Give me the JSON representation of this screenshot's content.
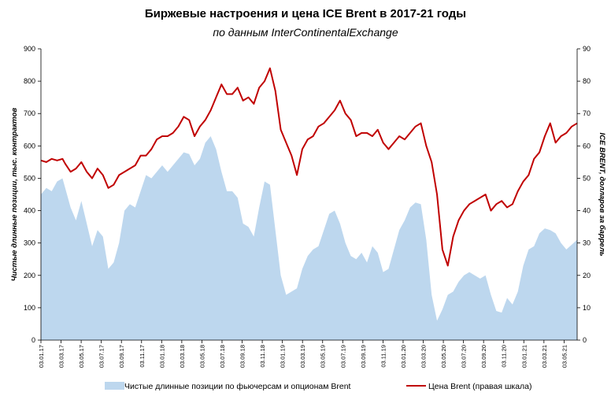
{
  "chart_data": {
    "type": "area+line",
    "title": "Биржевые настроения  и цена ICE Brent в 2017-21 годы",
    "subtitle": "по данным InterContinentalExchange",
    "ylabel_left": "Чистые длинные позиции, тыс. контрактов",
    "ylabel_right": "ICE BRENT, долларов за баррель",
    "ylim_left": [
      0,
      900
    ],
    "ylim_right": [
      0,
      90
    ],
    "yticks_left": [
      "0",
      "100",
      "200",
      "300",
      "400",
      "500",
      "600",
      "700",
      "800",
      "900"
    ],
    "yticks_right": [
      "0",
      "10",
      "20",
      "30",
      "40",
      "50",
      "60",
      "70",
      "80",
      "90"
    ],
    "x_range": [
      "03.01.17",
      "04.05.21"
    ],
    "xtick_labels": [
      "03.01.17",
      "03.03.17",
      "03.05.17",
      "03.07.17",
      "03.09.17",
      "03.11.17",
      "03.01.18",
      "03.03.18",
      "03.05.18",
      "03.07.18",
      "03.09.18",
      "03.11.18",
      "03.01.19",
      "03.03.19",
      "03.05.19",
      "03.07.19",
      "03.09.19",
      "03.11.19",
      "03.01.20",
      "03.03.20",
      "03.05.20",
      "03.07.20",
      "03.09.20",
      "03.11.20",
      "03.01.21",
      "03.03.21",
      "03.05.21"
    ],
    "series": [
      {
        "name": "Чистые длинные позиции по фьючерсам и опционам Brent",
        "type": "area",
        "axis": "left",
        "color": "#bdd7ee",
        "points": [
          [
            0,
            450
          ],
          [
            2,
            470
          ],
          [
            4,
            460
          ],
          [
            6,
            490
          ],
          [
            8,
            500
          ],
          [
            9,
            470
          ],
          [
            11,
            410
          ],
          [
            13,
            370
          ],
          [
            15,
            430
          ],
          [
            17,
            360
          ],
          [
            19,
            290
          ],
          [
            21,
            340
          ],
          [
            23,
            320
          ],
          [
            25,
            220
          ],
          [
            27,
            240
          ],
          [
            29,
            300
          ],
          [
            31,
            400
          ],
          [
            33,
            420
          ],
          [
            35,
            410
          ],
          [
            37,
            460
          ],
          [
            39,
            510
          ],
          [
            41,
            500
          ],
          [
            43,
            520
          ],
          [
            45,
            540
          ],
          [
            47,
            520
          ],
          [
            49,
            540
          ],
          [
            51,
            560
          ],
          [
            53,
            580
          ],
          [
            55,
            575
          ],
          [
            57,
            540
          ],
          [
            59,
            560
          ],
          [
            61,
            610
          ],
          [
            63,
            630
          ],
          [
            65,
            590
          ],
          [
            67,
            520
          ],
          [
            69,
            460
          ],
          [
            71,
            460
          ],
          [
            73,
            440
          ],
          [
            75,
            360
          ],
          [
            77,
            350
          ],
          [
            79,
            320
          ],
          [
            81,
            410
          ],
          [
            83,
            490
          ],
          [
            85,
            480
          ],
          [
            87,
            340
          ],
          [
            89,
            200
          ],
          [
            91,
            140
          ],
          [
            93,
            150
          ],
          [
            95,
            160
          ],
          [
            97,
            220
          ],
          [
            99,
            260
          ],
          [
            101,
            280
          ],
          [
            103,
            290
          ],
          [
            105,
            340
          ],
          [
            107,
            390
          ],
          [
            109,
            400
          ],
          [
            111,
            360
          ],
          [
            113,
            300
          ],
          [
            115,
            260
          ],
          [
            117,
            250
          ],
          [
            119,
            270
          ],
          [
            121,
            240
          ],
          [
            123,
            290
          ],
          [
            125,
            270
          ],
          [
            127,
            210
          ],
          [
            129,
            220
          ],
          [
            131,
            280
          ],
          [
            133,
            340
          ],
          [
            135,
            370
          ],
          [
            137,
            410
          ],
          [
            139,
            425
          ],
          [
            141,
            420
          ],
          [
            143,
            310
          ],
          [
            145,
            140
          ],
          [
            147,
            60
          ],
          [
            149,
            95
          ],
          [
            151,
            140
          ],
          [
            153,
            150
          ],
          [
            155,
            180
          ],
          [
            157,
            200
          ],
          [
            159,
            210
          ],
          [
            161,
            200
          ],
          [
            163,
            190
          ],
          [
            165,
            200
          ],
          [
            167,
            140
          ],
          [
            169,
            90
          ],
          [
            171,
            85
          ],
          [
            173,
            130
          ],
          [
            175,
            110
          ],
          [
            177,
            150
          ],
          [
            179,
            230
          ],
          [
            181,
            280
          ],
          [
            183,
            290
          ],
          [
            185,
            330
          ],
          [
            187,
            345
          ],
          [
            189,
            340
          ],
          [
            191,
            330
          ],
          [
            193,
            300
          ],
          [
            195,
            280
          ],
          [
            197,
            295
          ],
          [
            199,
            310
          ]
        ]
      },
      {
        "name": "Цена Brent (правая шкала)",
        "type": "line",
        "axis": "right",
        "color": "#c00000",
        "points": [
          [
            0,
            55.5
          ],
          [
            2,
            55
          ],
          [
            4,
            56
          ],
          [
            6,
            55.5
          ],
          [
            8,
            56
          ],
          [
            9,
            54.5
          ],
          [
            11,
            52
          ],
          [
            13,
            53
          ],
          [
            15,
            55
          ],
          [
            17,
            52
          ],
          [
            19,
            50
          ],
          [
            21,
            53
          ],
          [
            23,
            51
          ],
          [
            25,
            47
          ],
          [
            27,
            48
          ],
          [
            29,
            51
          ],
          [
            31,
            52
          ],
          [
            33,
            53
          ],
          [
            35,
            54
          ],
          [
            37,
            57
          ],
          [
            39,
            57
          ],
          [
            41,
            59
          ],
          [
            43,
            62
          ],
          [
            45,
            63
          ],
          [
            47,
            63
          ],
          [
            49,
            64
          ],
          [
            51,
            66
          ],
          [
            53,
            69
          ],
          [
            55,
            68
          ],
          [
            57,
            63
          ],
          [
            59,
            66
          ],
          [
            61,
            68
          ],
          [
            63,
            71
          ],
          [
            65,
            75
          ],
          [
            67,
            79
          ],
          [
            69,
            76
          ],
          [
            71,
            76
          ],
          [
            73,
            78
          ],
          [
            75,
            74
          ],
          [
            77,
            75
          ],
          [
            79,
            73
          ],
          [
            81,
            78
          ],
          [
            83,
            80
          ],
          [
            85,
            84
          ],
          [
            87,
            77
          ],
          [
            89,
            65
          ],
          [
            91,
            61
          ],
          [
            93,
            57
          ],
          [
            95,
            51
          ],
          [
            97,
            59
          ],
          [
            99,
            62
          ],
          [
            101,
            63
          ],
          [
            103,
            66
          ],
          [
            105,
            67
          ],
          [
            107,
            69
          ],
          [
            109,
            71
          ],
          [
            111,
            74
          ],
          [
            113,
            70
          ],
          [
            115,
            68
          ],
          [
            117,
            63
          ],
          [
            119,
            64
          ],
          [
            121,
            64
          ],
          [
            123,
            63
          ],
          [
            125,
            65
          ],
          [
            127,
            61
          ],
          [
            129,
            59
          ],
          [
            131,
            61
          ],
          [
            133,
            63
          ],
          [
            135,
            62
          ],
          [
            137,
            64
          ],
          [
            139,
            66
          ],
          [
            141,
            67
          ],
          [
            143,
            60
          ],
          [
            145,
            55
          ],
          [
            147,
            45
          ],
          [
            149,
            28
          ],
          [
            151,
            23
          ],
          [
            153,
            32
          ],
          [
            155,
            37
          ],
          [
            157,
            40
          ],
          [
            159,
            42
          ],
          [
            161,
            43
          ],
          [
            163,
            44
          ],
          [
            165,
            45
          ],
          [
            167,
            40
          ],
          [
            169,
            42
          ],
          [
            171,
            43
          ],
          [
            173,
            41
          ],
          [
            175,
            42
          ],
          [
            177,
            46
          ],
          [
            179,
            49
          ],
          [
            181,
            51
          ],
          [
            183,
            56
          ],
          [
            185,
            58
          ],
          [
            187,
            63
          ],
          [
            189,
            67
          ],
          [
            191,
            61
          ],
          [
            193,
            63
          ],
          [
            195,
            64
          ],
          [
            197,
            66
          ],
          [
            199,
            67
          ]
        ]
      }
    ],
    "legend": {
      "position": "bottom",
      "items": [
        {
          "label": "Чистые длинные позиции по фьючерсам и опционам Brent",
          "kind": "area",
          "color": "#bdd7ee"
        },
        {
          "label": "Цена Brent (правая шкала)",
          "kind": "line",
          "color": "#c00000"
        }
      ]
    },
    "grid": false
  }
}
